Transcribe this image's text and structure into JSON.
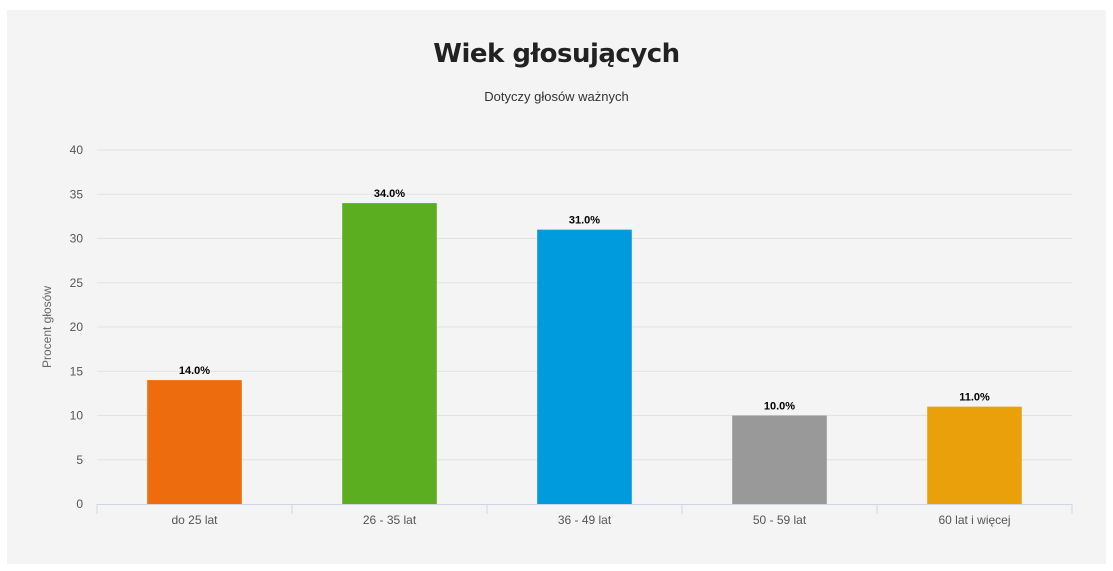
{
  "chart_data": {
    "type": "bar",
    "title": "Wiek głosujących",
    "subtitle": "Dotyczy głosów ważnych",
    "xlabel": "",
    "ylabel": "Procent głosów",
    "ylim": [
      0,
      40
    ],
    "yticks": [
      0,
      5,
      10,
      15,
      20,
      25,
      30,
      35,
      40
    ],
    "grid": true,
    "legend": false,
    "categories": [
      "do 25 lat",
      "26 - 35 lat",
      "36 - 49 lat",
      "50 - 59 lat",
      "60 lat i więcej"
    ],
    "values": [
      14.0,
      34.0,
      31.0,
      10.0,
      11.0
    ],
    "data_labels": [
      "14.0%",
      "34.0%",
      "31.0%",
      "10.0%",
      "11.0%"
    ],
    "colors": [
      "#ed6d0e",
      "#5bae1f",
      "#009bdd",
      "#999999",
      "#eaa00a"
    ]
  }
}
